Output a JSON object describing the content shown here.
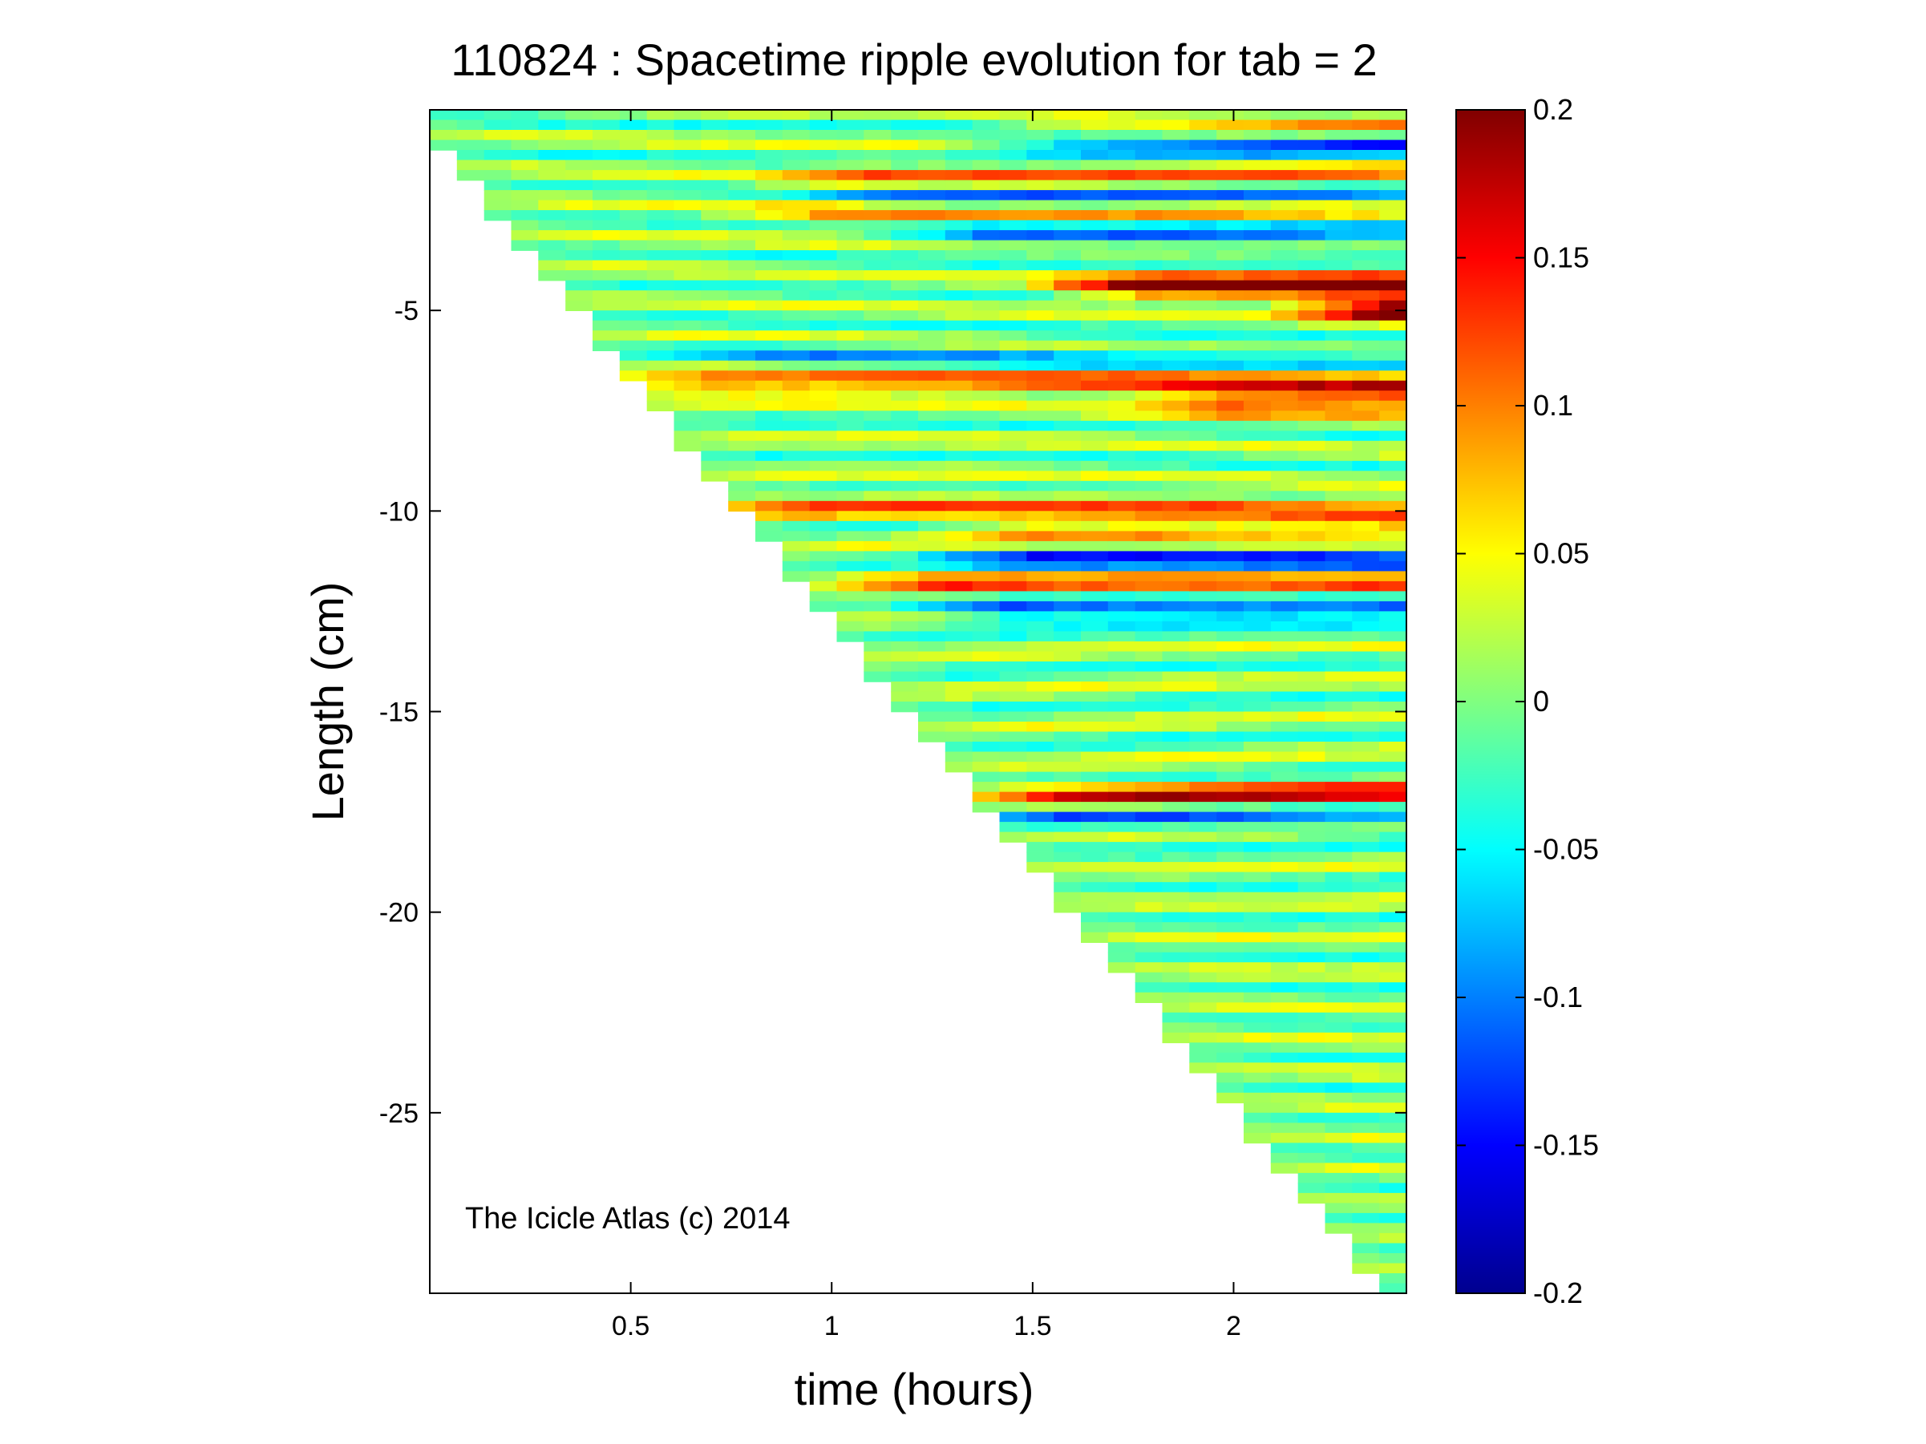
{
  "chart_data": {
    "type": "heatmap",
    "title": "110824 : Spacetime ripple evolution for tab = 2",
    "xlabel": "time (hours)",
    "ylabel": "Length (cm)",
    "xlim": [
      0,
      2.43
    ],
    "ylim": [
      -29.5,
      0
    ],
    "x_ticks": [
      0.5,
      1,
      1.5,
      2
    ],
    "x_tick_labels": [
      "0.5",
      "1",
      "1.5",
      "2"
    ],
    "y_ticks": [
      -5,
      -10,
      -15,
      -20,
      -25
    ],
    "y_tick_labels": [
      "-5",
      "-10",
      "-15",
      "-20",
      "-25"
    ],
    "colorbar": {
      "colormap": "jet",
      "range": [
        -0.2,
        0.2
      ],
      "ticks": [
        0.2,
        0.15,
        0.1,
        0.05,
        0,
        -0.05,
        -0.1,
        -0.15,
        -0.2
      ],
      "tick_labels": [
        "0.2",
        "0.15",
        "0.1",
        "0.05",
        "0",
        "-0.05",
        "-0.1",
        "-0.15",
        "-0.2"
      ]
    },
    "annotation": "The Icicle Atlas (c) 2014",
    "grid": false,
    "growth_front": {
      "description_points": [
        [
          0,
          -0.6
        ],
        [
          2.35,
          -29.2
        ]
      ]
    },
    "ripple_bands": [
      {
        "y": -0.35,
        "t_start": 1.4,
        "amp": 0.1
      },
      {
        "y": -0.8,
        "t_start": 1.4,
        "amp": -0.12
      },
      {
        "y": -1.7,
        "t_start": 0.9,
        "amp": 0.1
      },
      {
        "y": -2.1,
        "t_start": 1.0,
        "amp": -0.1
      },
      {
        "y": -2.6,
        "t_start": 0.8,
        "amp": 0.07
      },
      {
        "y": -3.1,
        "t_start": 1.2,
        "amp": -0.09
      },
      {
        "y": -4.4,
        "t_start": 1.6,
        "amp": 0.2
      },
      {
        "y": -5.0,
        "t_start": 2.2,
        "amp": 0.2
      },
      {
        "y": -6.2,
        "t_start": 0.6,
        "amp": -0.06
      },
      {
        "y": -6.8,
        "t_start": 0.5,
        "amp": 0.12
      },
      {
        "y": -7.3,
        "t_start": 1.8,
        "amp": 0.12
      },
      {
        "y": -9.9,
        "t_start": 0.7,
        "amp": 0.09
      },
      {
        "y": -10.5,
        "t_start": 1.3,
        "amp": 0.09
      },
      {
        "y": -11.2,
        "t_start": 1.3,
        "amp": -0.12
      },
      {
        "y": -11.9,
        "t_start": 1.1,
        "amp": 0.13
      },
      {
        "y": -12.4,
        "t_start": 1.25,
        "amp": -0.14
      },
      {
        "y": -17.1,
        "t_start": 1.4,
        "amp": 0.15
      },
      {
        "y": -17.6,
        "t_start": 1.35,
        "amp": -0.09
      }
    ]
  }
}
